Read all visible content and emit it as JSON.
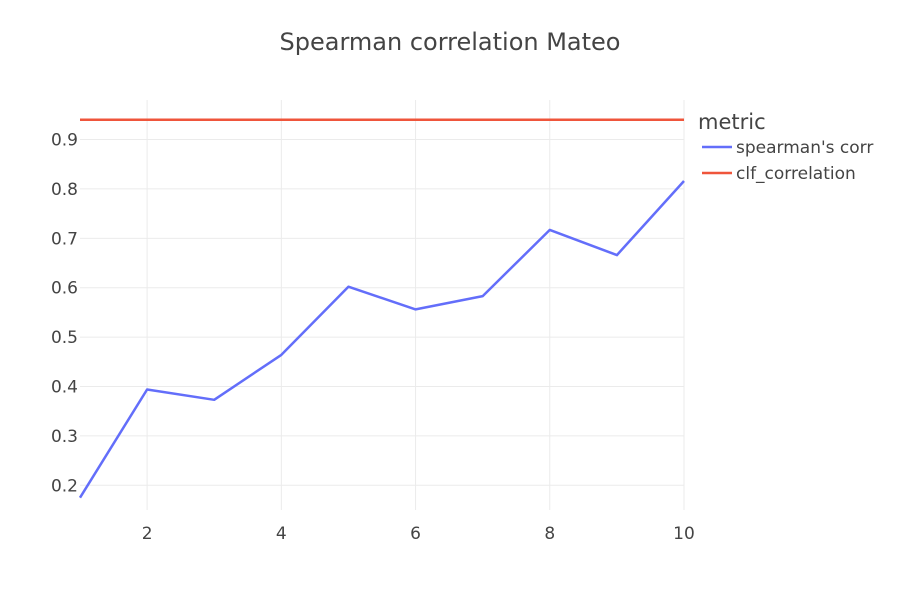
{
  "chart_data": {
    "type": "line",
    "title": "Spearman correlation Mateo",
    "xlabel": "",
    "ylabel": "",
    "xlim": [
      1,
      10
    ],
    "ylim": [
      0.15,
      0.98
    ],
    "x_ticks": [
      2,
      4,
      6,
      8,
      10
    ],
    "y_ticks": [
      0.2,
      0.3,
      0.4,
      0.5,
      0.6,
      0.7,
      0.8,
      0.9
    ],
    "grid": true,
    "legend": {
      "title": "metric",
      "position": "right"
    },
    "series": [
      {
        "name": "spearman's corr",
        "color": "#636efa",
        "x": [
          1,
          2,
          3,
          4,
          5,
          6,
          7,
          8,
          9,
          10
        ],
        "y": [
          0.175,
          0.394,
          0.373,
          0.464,
          0.602,
          0.556,
          0.583,
          0.717,
          0.666,
          0.816
        ]
      },
      {
        "name": "clf_correlation",
        "color": "#ef553b",
        "x": [
          1,
          10
        ],
        "y": [
          0.94,
          0.94
        ]
      }
    ]
  }
}
